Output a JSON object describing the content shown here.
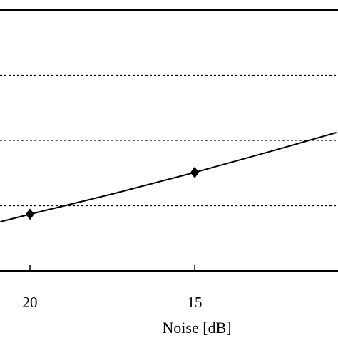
{
  "chart_data": {
    "type": "line",
    "x_label": "Noise [dB]",
    "xlim": [
      20.91,
      10.65
    ],
    "xticks": [
      20,
      15
    ],
    "ylim": [
      0,
      4
    ],
    "yticks": [
      1,
      2,
      3
    ],
    "grid": true,
    "series": [
      {
        "x": [
          20.9,
          20,
          17.5,
          15,
          12.5,
          10.7
        ],
        "values": [
          0.754,
          0.87,
          1.18,
          1.51,
          1.86,
          2.12
        ],
        "color": "#000000",
        "marker": "none"
      },
      {
        "x": [
          20,
          15
        ],
        "values": [
          0.87,
          1.51
        ],
        "color": "#000000",
        "marker": "diamond"
      }
    ]
  }
}
